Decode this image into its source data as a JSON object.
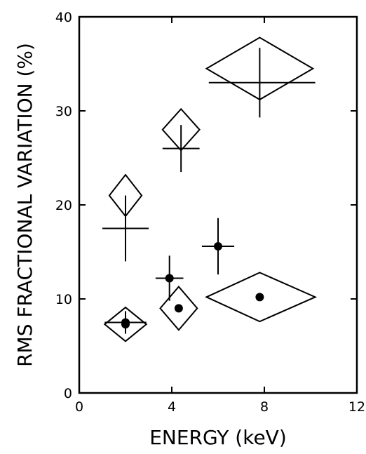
{
  "chart_data": {
    "type": "scatter",
    "xlabel": "ENERGY  (keV)",
    "ylabel": "RMS FRACTIONAL VARIATION (%)",
    "xlim": [
      0,
      12
    ],
    "ylim": [
      0,
      40
    ],
    "xticks": [
      0,
      4,
      8,
      12
    ],
    "yticks": [
      0,
      10,
      20,
      30,
      40
    ],
    "grid": false,
    "series": [
      {
        "marker": "cross",
        "points": [
          {
            "x": 2.0,
            "y": 17.5,
            "xerr_low": 1.0,
            "xerr_high": 1.0,
            "yerr_low": 3.5,
            "yerr_high": 3.5
          },
          {
            "x": 4.4,
            "y": 26.0,
            "xerr_low": 0.8,
            "xerr_high": 0.8,
            "yerr_low": 2.5,
            "yerr_high": 2.5
          },
          {
            "x": 7.8,
            "y": 33.0,
            "xerr_low": 2.2,
            "xerr_high": 2.4,
            "yerr_low": 3.7,
            "yerr_high": 3.7
          }
        ]
      },
      {
        "marker": "diamond",
        "points": [
          {
            "x": 2.0,
            "y": 21.0,
            "xerr_low": 0.7,
            "xerr_high": 0.7,
            "yerr_low": 2.2,
            "yerr_high": 2.2
          },
          {
            "x": 4.4,
            "y": 28.0,
            "xerr_low": 0.8,
            "xerr_high": 0.8,
            "yerr_low": 2.2,
            "yerr_high": 2.2
          },
          {
            "x": 7.8,
            "y": 34.5,
            "xerr_low": 2.3,
            "xerr_high": 2.3,
            "yerr_low": 3.3,
            "yerr_high": 3.3
          }
        ]
      },
      {
        "marker": "cross-dot",
        "points": [
          {
            "x": 2.0,
            "y": 7.5,
            "xerr_low": 0.9,
            "xerr_high": 0.9,
            "yerr_low": 1.2,
            "yerr_high": 1.2
          },
          {
            "x": 3.9,
            "y": 12.2,
            "xerr_low": 0.6,
            "xerr_high": 0.6,
            "yerr_low": 2.4,
            "yerr_high": 2.4
          },
          {
            "x": 6.0,
            "y": 15.6,
            "xerr_low": 0.7,
            "xerr_high": 0.7,
            "yerr_low": 3.0,
            "yerr_high": 3.0
          }
        ]
      },
      {
        "marker": "diamond-dot",
        "points": [
          {
            "x": 2.0,
            "y": 7.3,
            "xerr_low": 0.9,
            "xerr_high": 0.9,
            "yerr_low": 1.8,
            "yerr_high": 1.8
          },
          {
            "x": 4.3,
            "y": 9.0,
            "xerr_low": 0.8,
            "xerr_high": 0.8,
            "yerr_low": 2.3,
            "yerr_high": 2.3
          },
          {
            "x": 7.8,
            "y": 10.2,
            "xerr_low": 2.3,
            "xerr_high": 2.4,
            "yerr_low": 2.6,
            "yerr_high": 2.6
          }
        ]
      }
    ]
  }
}
